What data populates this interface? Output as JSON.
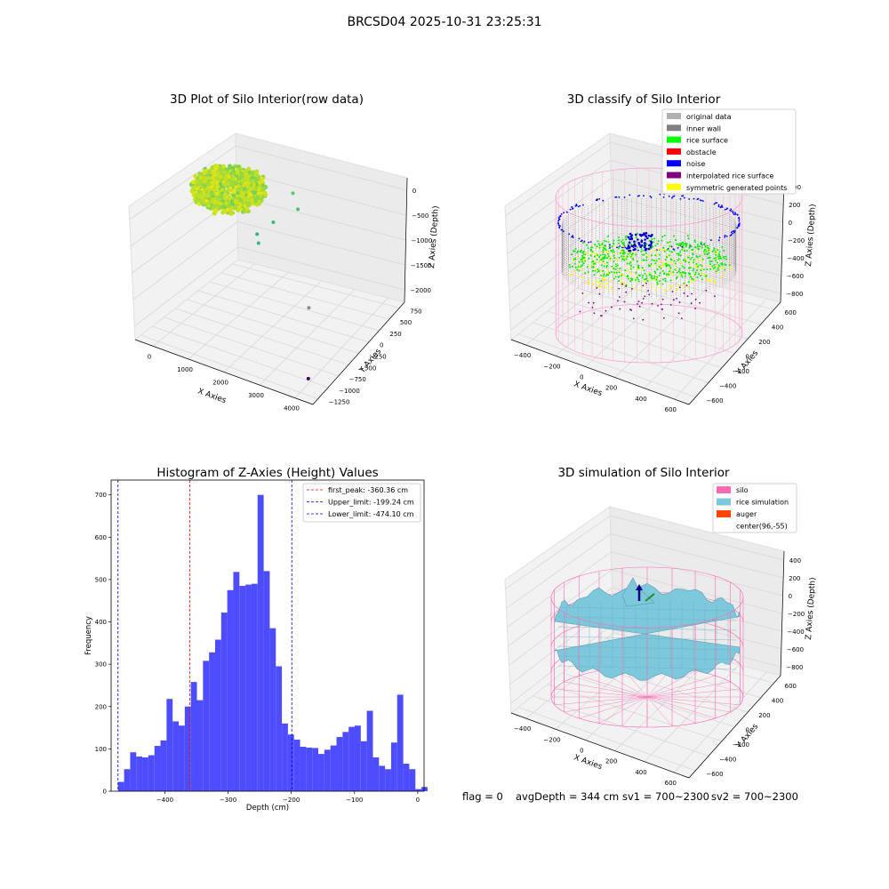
{
  "suptitle": "BRCSD04 2025-10-31 23:25:31",
  "footer": {
    "flag": "flag = 0",
    "avgdepth": "avgDepth = 344 cm",
    "sv1": "sv1 = 700~2300",
    "sv2": "sv2 = 700~2300"
  },
  "colors": {
    "hist_bar": "#4d4dff",
    "first_peak": "#ff0000",
    "limits": "#0000cc",
    "silo": "#ff69b4",
    "rice": "#7ec8dc",
    "auger": "#ff4500",
    "grid_pane": "#f2f2f2"
  },
  "chart_data": [
    {
      "type": "scatter",
      "projection": "3d",
      "title": "3D Plot of Silo Interior(row data)",
      "xlabel": "X Axies",
      "ylabel": "Y Axies",
      "zlabel": "Z Axies (Depth)",
      "x_ticks": [
        "0",
        "1000",
        "2000",
        "3000",
        "4000"
      ],
      "y_ticks": [
        "−1250",
        "−1000",
        "−750",
        "−500",
        "−250",
        "0",
        "250",
        "500",
        "750"
      ],
      "z_ticks": [
        "0",
        "−500",
        "−1000",
        "−1500",
        "−2000"
      ],
      "colormap": "viridis",
      "main_cluster": {
        "x_range": [
          -500,
          700
        ],
        "y_range": [
          -600,
          700
        ],
        "z_range": [
          -400,
          -200
        ]
      },
      "outliers": [
        {
          "x": 1500,
          "y": 500,
          "z": -500
        },
        {
          "x": 1700,
          "y": 450,
          "z": -700
        },
        {
          "x": 1200,
          "y": 300,
          "z": -900
        },
        {
          "x": 1000,
          "y": 100,
          "z": -1000
        },
        {
          "x": 1100,
          "y": 50,
          "z": -1100
        },
        {
          "x": 2900,
          "y": -300,
          "z": -1600
        },
        {
          "x": 3800,
          "y": -1100,
          "z": -2000
        }
      ]
    },
    {
      "type": "scatter",
      "projection": "3d",
      "title": "3D classify of Silo Interior",
      "xlabel": "X Axies",
      "ylabel": "Y Axies",
      "zlabel": "Z Axies (Depth)",
      "x_ticks": [
        "−400",
        "−200",
        "0",
        "200",
        "400",
        "600"
      ],
      "y_ticks": [
        "−600",
        "−400",
        "−200",
        "0",
        "200",
        "400",
        "600"
      ],
      "z_ticks": [
        "400",
        "200",
        "0",
        "−200",
        "−400",
        "−600",
        "−800"
      ],
      "legend": [
        {
          "label": "original data",
          "color": "#b0b0b0"
        },
        {
          "label": "inner wall",
          "color": "#808080"
        },
        {
          "label": "rice surface",
          "color": "#00ff00"
        },
        {
          "label": "obstacle",
          "color": "#ff0000"
        },
        {
          "label": "noise",
          "color": "#0000ff"
        },
        {
          "label": "interpolated rice surface",
          "color": "#800080"
        },
        {
          "label": "symmetric generated points",
          "color": "#ffff00"
        }
      ],
      "legend_loc": "top-right"
    },
    {
      "type": "bar",
      "title": "Histogram of Z-Axies (Height) Values",
      "xlabel": "Depth (cm)",
      "ylabel": "Frequency",
      "xlim": [
        -485,
        10
      ],
      "ylim": [
        0,
        735
      ],
      "x_ticks": [
        -400,
        -300,
        -200,
        -100,
        0
      ],
      "x_tick_labels": [
        "−400",
        "−300",
        "−200",
        "−100",
        "0"
      ],
      "y_ticks": [
        0,
        100,
        200,
        300,
        400,
        500,
        600,
        700
      ],
      "y_tick_labels": [
        "0",
        "100",
        "200",
        "300",
        "400",
        "500",
        "600",
        "700"
      ],
      "bin_start": -474.1,
      "bin_width": 9.6,
      "values": [
        22,
        52,
        92,
        82,
        80,
        85,
        107,
        120,
        218,
        165,
        155,
        200,
        258,
        215,
        308,
        328,
        358,
        422,
        475,
        518,
        485,
        488,
        490,
        700,
        520,
        385,
        295,
        160,
        134,
        122,
        105,
        103,
        102,
        88,
        98,
        108,
        128,
        140,
        152,
        155,
        118,
        190,
        80,
        60,
        52,
        115,
        228,
        65,
        52,
        5,
        10
      ],
      "vlines": [
        {
          "label": "first_peak: -360.36 cm",
          "x": -360.36,
          "color": "#ff0000"
        },
        {
          "label": "Upper_limit: -199.24 cm",
          "x": -199.24,
          "color": "#0000cc"
        },
        {
          "label": "Lower_limit: -474.10 cm",
          "x": -474.1,
          "color": "#0000cc"
        }
      ],
      "legend_loc": "top-right"
    },
    {
      "type": "surface",
      "projection": "3d",
      "title": "3D simulation of Silo Interior",
      "xlabel": "X Axies",
      "ylabel": "Y Axies",
      "zlabel": "Z Axies (Depth)",
      "x_ticks": [
        "−400",
        "−200",
        "0",
        "200",
        "400",
        "600"
      ],
      "y_ticks": [
        "−600",
        "−400",
        "−200",
        "0",
        "200",
        "400",
        "600"
      ],
      "z_ticks": [
        "400",
        "200",
        "0",
        "−200",
        "−400",
        "−600",
        "−800"
      ],
      "legend": [
        {
          "label": "silo",
          "color": "#ff69b4"
        },
        {
          "label": "rice simulation",
          "color": "#7ec8dc"
        },
        {
          "label": "auger",
          "color": "#ff4500"
        },
        {
          "label": "center(96,-55)",
          "color": ""
        }
      ],
      "legend_loc": "top-right"
    }
  ]
}
